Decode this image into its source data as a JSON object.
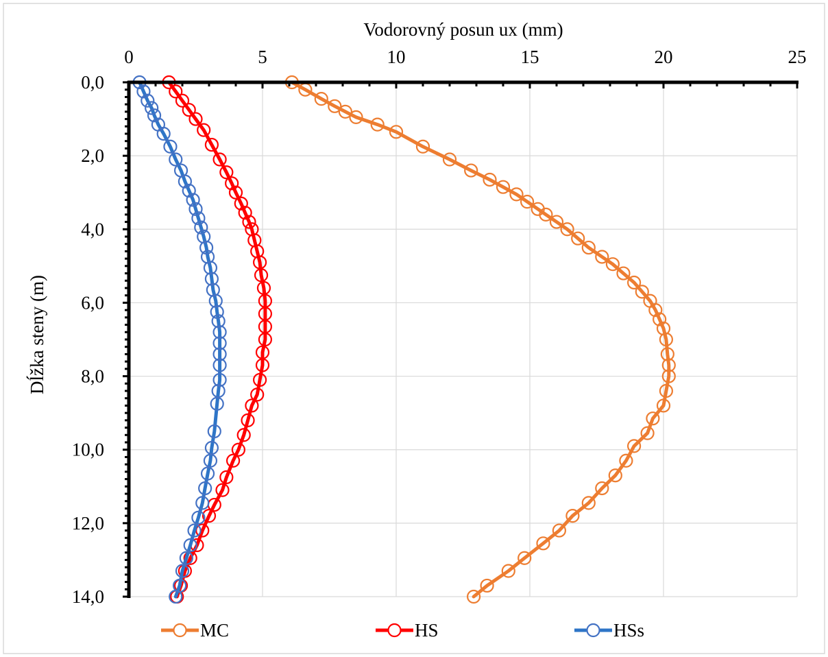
{
  "chart_data": {
    "type": "line",
    "title": "",
    "xlabel": "Vodorovný posun ux (mm)",
    "ylabel": "Dĺžka steny (m)",
    "xlim": [
      0,
      25
    ],
    "ylim": [
      0,
      14
    ],
    "y_inverted": true,
    "x_axis_position": "top",
    "grid": true,
    "legend_position": "bottom",
    "x_ticks": [
      0,
      5,
      10,
      15,
      20,
      25
    ],
    "x_tick_labels": [
      "0",
      "5",
      "10",
      "15",
      "20",
      "25"
    ],
    "y_ticks": [
      0,
      2,
      4,
      6,
      8,
      10,
      12,
      14
    ],
    "y_tick_labels": [
      "0,0",
      "2,0",
      "4,0",
      "6,0",
      "8,0",
      "10,0",
      "12,0",
      "14,0"
    ],
    "series": [
      {
        "name": "MC",
        "color": "#ED7D31",
        "marker": "open-circle",
        "points": [
          [
            6.1,
            0.0
          ],
          [
            6.6,
            0.2
          ],
          [
            7.2,
            0.45
          ],
          [
            7.7,
            0.65
          ],
          [
            8.1,
            0.8
          ],
          [
            8.5,
            0.95
          ],
          [
            9.3,
            1.15
          ],
          [
            10.0,
            1.35
          ],
          [
            11.0,
            1.75
          ],
          [
            12.0,
            2.1
          ],
          [
            12.8,
            2.4
          ],
          [
            13.5,
            2.65
          ],
          [
            14.0,
            2.85
          ],
          [
            14.5,
            3.05
          ],
          [
            14.9,
            3.25
          ],
          [
            15.3,
            3.45
          ],
          [
            15.6,
            3.6
          ],
          [
            16.0,
            3.8
          ],
          [
            16.4,
            4.0
          ],
          [
            16.8,
            4.25
          ],
          [
            17.2,
            4.5
          ],
          [
            17.7,
            4.75
          ],
          [
            18.1,
            4.95
          ],
          [
            18.5,
            5.2
          ],
          [
            18.9,
            5.45
          ],
          [
            19.2,
            5.7
          ],
          [
            19.5,
            5.95
          ],
          [
            19.7,
            6.2
          ],
          [
            19.85,
            6.45
          ],
          [
            20.0,
            6.7
          ],
          [
            20.1,
            7.0
          ],
          [
            20.15,
            7.4
          ],
          [
            20.2,
            7.7
          ],
          [
            20.2,
            8.0
          ],
          [
            20.1,
            8.4
          ],
          [
            20.0,
            8.8
          ],
          [
            19.6,
            9.15
          ],
          [
            19.4,
            9.55
          ],
          [
            18.9,
            9.9
          ],
          [
            18.6,
            10.3
          ],
          [
            18.2,
            10.7
          ],
          [
            17.7,
            11.05
          ],
          [
            17.2,
            11.45
          ],
          [
            16.6,
            11.8
          ],
          [
            16.1,
            12.2
          ],
          [
            15.5,
            12.55
          ],
          [
            14.8,
            12.95
          ],
          [
            14.2,
            13.3
          ],
          [
            13.4,
            13.7
          ],
          [
            12.9,
            14.0
          ]
        ]
      },
      {
        "name": "HS",
        "color": "#FF0000",
        "marker": "open-circle",
        "points": [
          [
            1.5,
            0.0
          ],
          [
            1.75,
            0.25
          ],
          [
            2.0,
            0.5
          ],
          [
            2.25,
            0.75
          ],
          [
            2.5,
            1.0
          ],
          [
            2.8,
            1.3
          ],
          [
            3.1,
            1.7
          ],
          [
            3.4,
            2.1
          ],
          [
            3.65,
            2.45
          ],
          [
            3.85,
            2.75
          ],
          [
            4.0,
            3.0
          ],
          [
            4.2,
            3.3
          ],
          [
            4.35,
            3.55
          ],
          [
            4.5,
            3.8
          ],
          [
            4.6,
            4.0
          ],
          [
            4.7,
            4.3
          ],
          [
            4.8,
            4.6
          ],
          [
            4.9,
            4.9
          ],
          [
            4.95,
            5.25
          ],
          [
            5.05,
            5.6
          ],
          [
            5.1,
            5.95
          ],
          [
            5.1,
            6.3
          ],
          [
            5.1,
            6.65
          ],
          [
            5.1,
            7.0
          ],
          [
            5.0,
            7.35
          ],
          [
            5.0,
            7.7
          ],
          [
            4.9,
            8.1
          ],
          [
            4.8,
            8.5
          ],
          [
            4.6,
            8.8
          ],
          [
            4.45,
            9.2
          ],
          [
            4.3,
            9.6
          ],
          [
            4.1,
            10.0
          ],
          [
            3.9,
            10.3
          ],
          [
            3.65,
            10.75
          ],
          [
            3.5,
            11.1
          ],
          [
            3.2,
            11.5
          ],
          [
            3.0,
            11.8
          ],
          [
            2.75,
            12.2
          ],
          [
            2.55,
            12.6
          ],
          [
            2.3,
            12.95
          ],
          [
            2.1,
            13.3
          ],
          [
            1.95,
            13.7
          ],
          [
            1.8,
            14.0
          ]
        ]
      },
      {
        "name": "HSs",
        "color": "#4472C4",
        "marker": "open-circle",
        "line_color": "#2E75C7",
        "points": [
          [
            0.4,
            0.0
          ],
          [
            0.55,
            0.25
          ],
          [
            0.7,
            0.5
          ],
          [
            0.85,
            0.7
          ],
          [
            0.95,
            0.9
          ],
          [
            1.1,
            1.15
          ],
          [
            1.3,
            1.4
          ],
          [
            1.55,
            1.75
          ],
          [
            1.75,
            2.1
          ],
          [
            1.95,
            2.4
          ],
          [
            2.1,
            2.7
          ],
          [
            2.25,
            2.95
          ],
          [
            2.4,
            3.2
          ],
          [
            2.5,
            3.45
          ],
          [
            2.6,
            3.7
          ],
          [
            2.7,
            3.95
          ],
          [
            2.8,
            4.2
          ],
          [
            2.9,
            4.5
          ],
          [
            2.95,
            4.75
          ],
          [
            3.05,
            5.05
          ],
          [
            3.1,
            5.35
          ],
          [
            3.15,
            5.65
          ],
          [
            3.25,
            5.95
          ],
          [
            3.3,
            6.25
          ],
          [
            3.35,
            6.5
          ],
          [
            3.4,
            6.8
          ],
          [
            3.4,
            7.1
          ],
          [
            3.4,
            7.4
          ],
          [
            3.4,
            7.7
          ],
          [
            3.4,
            8.1
          ],
          [
            3.35,
            8.4
          ],
          [
            3.3,
            8.75
          ],
          [
            3.2,
            9.5
          ],
          [
            3.1,
            9.95
          ],
          [
            3.05,
            10.3
          ],
          [
            2.95,
            10.65
          ],
          [
            2.85,
            11.05
          ],
          [
            2.75,
            11.45
          ],
          [
            2.6,
            11.85
          ],
          [
            2.45,
            12.2
          ],
          [
            2.3,
            12.6
          ],
          [
            2.15,
            12.95
          ],
          [
            2.0,
            13.3
          ],
          [
            1.9,
            13.7
          ],
          [
            1.75,
            14.0
          ]
        ]
      }
    ]
  }
}
